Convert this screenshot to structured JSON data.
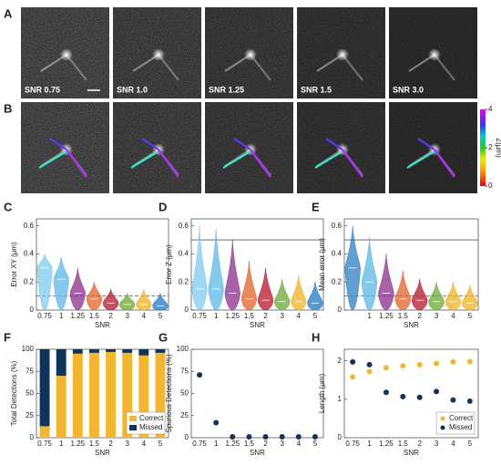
{
  "images": {
    "rows": [
      {
        "label": "A",
        "tracks": false
      },
      {
        "label": "B",
        "tracks": true
      }
    ],
    "snr_labels": [
      "SNR 0.75",
      "SNR 1.0",
      "SNR 1.25",
      "SNR 1.5",
      "SNR 3.0"
    ],
    "colorbar": {
      "label": "Z(μm)",
      "lim": [
        0,
        4
      ],
      "ticks": [
        0,
        2,
        4
      ]
    }
  },
  "chart_data": [
    {
      "type": "violin",
      "label": "C",
      "xlabel": "SNR",
      "ylabel": "Error XY (μm)",
      "categories": [
        "0.75",
        "1",
        "1.25",
        "1.5",
        "2",
        "3",
        "4",
        "5"
      ],
      "values": [
        0.3,
        0.22,
        0.12,
        0.08,
        0.05,
        0.04,
        0.04,
        0.03
      ],
      "maxima": [
        0.4,
        0.38,
        0.3,
        0.2,
        0.15,
        0.12,
        0.15,
        0.12
      ],
      "colors": [
        "#7ecbee",
        "#5cb8e6",
        "#8b2f8b",
        "#e2622a",
        "#b5152b",
        "#6aa832",
        "#f0b323",
        "#1f78c1"
      ],
      "ref_lines": [
        {
          "value": 0.1,
          "style": "dashed"
        }
      ],
      "ylim": [
        0,
        0.65
      ],
      "yticks": [
        0,
        0.2,
        0.4,
        0.6
      ]
    },
    {
      "type": "violin",
      "label": "D",
      "xlabel": "SNR",
      "ylabel": "Error Z (μm)",
      "categories": [
        "0.75",
        "1",
        "1.25",
        "1.5",
        "2",
        "3",
        "4",
        "5"
      ],
      "values": [
        0.15,
        0.15,
        0.12,
        0.08,
        0.07,
        0.06,
        0.06,
        0.05
      ],
      "maxima": [
        0.6,
        0.58,
        0.5,
        0.35,
        0.3,
        0.22,
        0.25,
        0.2
      ],
      "colors": [
        "#7ecbee",
        "#5cb8e6",
        "#8b2f8b",
        "#e2622a",
        "#b5152b",
        "#6aa832",
        "#f0b323",
        "#1f78c1"
      ],
      "ref_lines": [
        {
          "value": 0.5,
          "style": "solid"
        }
      ],
      "ylim": [
        0,
        0.65
      ],
      "yticks": [
        0,
        0.2,
        0.4,
        0.6
      ]
    },
    {
      "type": "violin",
      "label": "E",
      "xlabel": "SNR",
      "ylabel": "Mean error (μm)",
      "categories": [
        null,
        "1",
        "1.25",
        "1.5",
        "2",
        "3",
        "4",
        "5"
      ],
      "values": [
        0.3,
        0.2,
        0.12,
        0.08,
        0.07,
        0.06,
        0.06,
        0.05
      ],
      "maxima": [
        0.6,
        0.52,
        0.4,
        0.28,
        0.22,
        0.2,
        0.2,
        0.18
      ],
      "colors": [
        "#2c7fc0",
        "#5cb8e6",
        "#8b2f8b",
        "#e2622a",
        "#b5152b",
        "#6aa832",
        "#f0b323",
        "#f0b323"
      ],
      "ref_lines": [
        {
          "value": 0.5,
          "style": "solid"
        },
        {
          "value": 0.1,
          "style": "dashed"
        }
      ],
      "ylim": [
        0,
        0.65
      ],
      "yticks": [
        0,
        0.2,
        0.4,
        0.6
      ]
    },
    {
      "type": "stacked_bar",
      "label": "F",
      "xlabel": "SNR",
      "ylabel": "Total Detections (%)",
      "categories": [
        "0.75",
        "1",
        "1.25",
        "1.5",
        "2",
        "3",
        "4",
        "5"
      ],
      "series": [
        {
          "name": "Correct",
          "color": "#f2b630",
          "values": [
            13,
            70,
            95,
            96,
            97,
            96,
            93,
            96
          ]
        },
        {
          "name": "Missed",
          "color": "#12345a",
          "values": [
            87,
            30,
            5,
            4,
            3,
            4,
            7,
            4
          ]
        }
      ],
      "legend": "lower right",
      "ylim": [
        0,
        100
      ],
      "yticks": [
        0,
        25,
        50,
        75,
        100
      ]
    },
    {
      "type": "dot",
      "label": "G",
      "xlabel": "SNR",
      "ylabel": "Spurious Detections (%)",
      "categories": [
        "0.75",
        "1",
        "1.25",
        "1.5",
        "2",
        "3",
        "4",
        "5"
      ],
      "series": [
        {
          "name": null,
          "color": "#12345a",
          "values": [
            71,
            17,
            1,
            1,
            1,
            1,
            1,
            1
          ]
        }
      ],
      "ylim": [
        0,
        100
      ],
      "yticks": [
        0,
        25,
        50,
        75,
        100
      ]
    },
    {
      "type": "dot",
      "label": "H",
      "xlabel": "SNR",
      "ylabel": "Length (μm)",
      "categories": [
        "0.75",
        "1",
        "1.25",
        "1.5",
        "2",
        "3",
        "4",
        "5"
      ],
      "series": [
        {
          "name": "Correct",
          "color": "#f2b630",
          "values": [
            1.58,
            1.72,
            1.82,
            1.87,
            1.9,
            1.93,
            1.97,
            1.98
          ]
        },
        {
          "name": "Missed",
          "color": "#12345a",
          "values": [
            1.97,
            1.9,
            1.18,
            1.07,
            1.05,
            1.2,
            0.98,
            0.95
          ]
        }
      ],
      "legend": "lower right",
      "ylim": [
        0,
        2.3
      ],
      "yticks": [
        0,
        1,
        2
      ]
    }
  ]
}
